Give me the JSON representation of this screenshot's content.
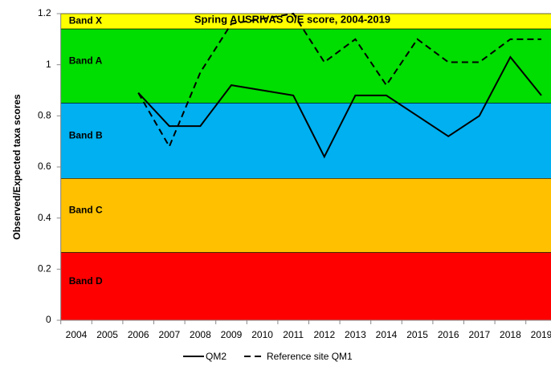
{
  "chart_data": {
    "type": "line",
    "title": "Spring AUSRIVAS O/E score, 2004-2019",
    "y_label": "Observed/Expected taxa scores",
    "categories": [
      "2004",
      "2005",
      "2006",
      "2007",
      "2008",
      "2009",
      "2010",
      "2011",
      "2012",
      "2013",
      "2014",
      "2015",
      "2016",
      "2017",
      "2018",
      "2019"
    ],
    "series": [
      {
        "name": "QM2",
        "color": "#000000",
        "dash": "solid",
        "values": [
          null,
          null,
          0.89,
          0.76,
          0.76,
          0.92,
          0.9,
          0.88,
          0.64,
          0.88,
          0.88,
          0.8,
          0.72,
          0.8,
          1.03,
          0.88
        ]
      },
      {
        "name": "Reference site QM1",
        "color": "#000000",
        "dash": "dashed",
        "values": [
          null,
          null,
          0.89,
          0.68,
          0.97,
          1.16,
          1.18,
          1.2,
          1.01,
          1.1,
          0.92,
          1.1,
          1.01,
          1.01,
          1.1,
          1.1
        ]
      }
    ],
    "bands": [
      {
        "name": "Band X",
        "from": 1.14,
        "to": 1.2,
        "color": "#ffff00"
      },
      {
        "name": "Band A",
        "from": 0.85,
        "to": 1.14,
        "color": "#00dd00"
      },
      {
        "name": "Band B",
        "from": 0.555,
        "to": 0.85,
        "color": "#00b0f0"
      },
      {
        "name": "Band C",
        "from": 0.265,
        "to": 0.555,
        "color": "#ffc000"
      },
      {
        "name": "Band D",
        "from": 0,
        "to": 0.265,
        "color": "#ff0000"
      }
    ],
    "ylim": [
      0,
      1.2
    ],
    "yticks": [
      0,
      0.2,
      0.4,
      0.6,
      0.8,
      1,
      1.2
    ],
    "legend": "bottom"
  }
}
